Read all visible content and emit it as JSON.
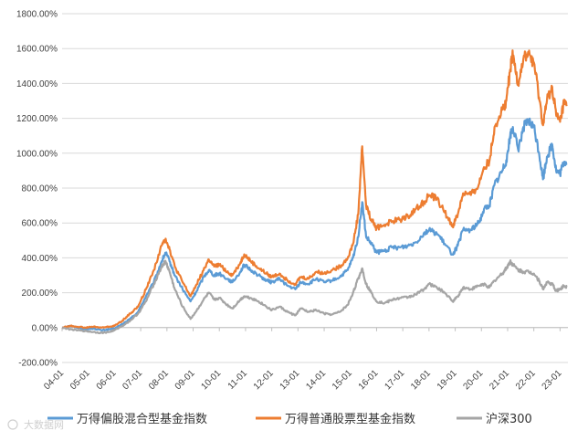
{
  "watermark": "大数据网",
  "chart_data": {
    "type": "line",
    "xlabel": "",
    "ylabel": "",
    "ylim": [
      -200,
      1800
    ],
    "yticks": [
      -200,
      0,
      200,
      400,
      600,
      800,
      1000,
      1200,
      1400,
      1600,
      1800
    ],
    "ytick_labels": [
      "-200.00%",
      "0.00%",
      "200.00%",
      "400.00%",
      "600.00%",
      "800.00%",
      "1000.00%",
      "1200.00%",
      "1400.00%",
      "1600.00%",
      "1800.00%"
    ],
    "x_tick_labels": [
      "04-01",
      "05-01",
      "06-01",
      "07-01",
      "08-01",
      "09-01",
      "10-01",
      "11-01",
      "12-01",
      "13-01",
      "14-01",
      "15-01",
      "16-01",
      "17-01",
      "18-01",
      "19-01",
      "20-01",
      "21-01",
      "22-01",
      "23-01"
    ],
    "x_range": [
      2004.0,
      2023.3
    ],
    "grid": true,
    "legend": "bottom",
    "series": [
      {
        "name": "万得偏股混合型基金指数",
        "color": "#5B9BD5",
        "points": [
          [
            2004.0,
            0
          ],
          [
            2004.3,
            10
          ],
          [
            2004.6,
            0
          ],
          [
            2004.9,
            -10
          ],
          [
            2005.2,
            -5
          ],
          [
            2005.5,
            -15
          ],
          [
            2005.8,
            -10
          ],
          [
            2006.0,
            -5
          ],
          [
            2006.3,
            20
          ],
          [
            2006.6,
            50
          ],
          [
            2006.9,
            90
          ],
          [
            2007.2,
            180
          ],
          [
            2007.5,
            260
          ],
          [
            2007.8,
            380
          ],
          [
            2007.95,
            430
          ],
          [
            2008.1,
            380
          ],
          [
            2008.3,
            300
          ],
          [
            2008.6,
            220
          ],
          [
            2008.9,
            150
          ],
          [
            2009.1,
            200
          ],
          [
            2009.4,
            290
          ],
          [
            2009.6,
            330
          ],
          [
            2009.8,
            300
          ],
          [
            2010.0,
            310
          ],
          [
            2010.3,
            280
          ],
          [
            2010.5,
            260
          ],
          [
            2010.8,
            320
          ],
          [
            2010.95,
            360
          ],
          [
            2011.2,
            330
          ],
          [
            2011.5,
            300
          ],
          [
            2011.8,
            270
          ],
          [
            2012.0,
            260
          ],
          [
            2012.3,
            280
          ],
          [
            2012.6,
            240
          ],
          [
            2012.9,
            220
          ],
          [
            2013.1,
            260
          ],
          [
            2013.4,
            250
          ],
          [
            2013.7,
            280
          ],
          [
            2014.0,
            260
          ],
          [
            2014.3,
            270
          ],
          [
            2014.6,
            290
          ],
          [
            2014.9,
            330
          ],
          [
            2015.1,
            400
          ],
          [
            2015.3,
            520
          ],
          [
            2015.45,
            720
          ],
          [
            2015.6,
            520
          ],
          [
            2015.8,
            480
          ],
          [
            2016.0,
            430
          ],
          [
            2016.3,
            440
          ],
          [
            2016.6,
            460
          ],
          [
            2016.9,
            460
          ],
          [
            2017.2,
            470
          ],
          [
            2017.5,
            490
          ],
          [
            2017.8,
            540
          ],
          [
            2018.0,
            560
          ],
          [
            2018.3,
            540
          ],
          [
            2018.6,
            480
          ],
          [
            2018.9,
            420
          ],
          [
            2019.1,
            470
          ],
          [
            2019.3,
            560
          ],
          [
            2019.6,
            560
          ],
          [
            2019.9,
            600
          ],
          [
            2020.1,
            680
          ],
          [
            2020.3,
            700
          ],
          [
            2020.5,
            820
          ],
          [
            2020.8,
            900
          ],
          [
            2020.95,
            960
          ],
          [
            2021.1,
            1100
          ],
          [
            2021.2,
            1150
          ],
          [
            2021.4,
            1020
          ],
          [
            2021.6,
            1150
          ],
          [
            2021.8,
            1180
          ],
          [
            2022.0,
            1150
          ],
          [
            2022.2,
            1000
          ],
          [
            2022.35,
            850
          ],
          [
            2022.5,
            980
          ],
          [
            2022.7,
            1050
          ],
          [
            2022.85,
            900
          ],
          [
            2023.0,
            880
          ],
          [
            2023.15,
            950
          ],
          [
            2023.25,
            940
          ]
        ]
      },
      {
        "name": "万得普通股票型基金指数",
        "color": "#ED7D31",
        "points": [
          [
            2004.0,
            0
          ],
          [
            2004.3,
            10
          ],
          [
            2004.6,
            5
          ],
          [
            2004.9,
            0
          ],
          [
            2005.2,
            5
          ],
          [
            2005.5,
            0
          ],
          [
            2005.8,
            5
          ],
          [
            2006.0,
            10
          ],
          [
            2006.3,
            40
          ],
          [
            2006.6,
            80
          ],
          [
            2006.9,
            120
          ],
          [
            2007.2,
            220
          ],
          [
            2007.5,
            330
          ],
          [
            2007.8,
            470
          ],
          [
            2007.95,
            510
          ],
          [
            2008.1,
            450
          ],
          [
            2008.3,
            350
          ],
          [
            2008.6,
            260
          ],
          [
            2008.9,
            180
          ],
          [
            2009.1,
            240
          ],
          [
            2009.4,
            330
          ],
          [
            2009.6,
            390
          ],
          [
            2009.8,
            350
          ],
          [
            2010.0,
            360
          ],
          [
            2010.3,
            320
          ],
          [
            2010.5,
            300
          ],
          [
            2010.8,
            370
          ],
          [
            2010.95,
            420
          ],
          [
            2011.2,
            380
          ],
          [
            2011.5,
            340
          ],
          [
            2011.8,
            310
          ],
          [
            2012.0,
            290
          ],
          [
            2012.3,
            310
          ],
          [
            2012.6,
            270
          ],
          [
            2012.9,
            250
          ],
          [
            2013.1,
            290
          ],
          [
            2013.4,
            280
          ],
          [
            2013.7,
            320
          ],
          [
            2014.0,
            310
          ],
          [
            2014.3,
            330
          ],
          [
            2014.6,
            350
          ],
          [
            2014.9,
            400
          ],
          [
            2015.1,
            480
          ],
          [
            2015.3,
            650
          ],
          [
            2015.45,
            1040
          ],
          [
            2015.6,
            700
          ],
          [
            2015.8,
            620
          ],
          [
            2016.0,
            570
          ],
          [
            2016.3,
            590
          ],
          [
            2016.6,
            610
          ],
          [
            2016.9,
            620
          ],
          [
            2017.2,
            640
          ],
          [
            2017.5,
            680
          ],
          [
            2017.8,
            720
          ],
          [
            2018.0,
            760
          ],
          [
            2018.3,
            740
          ],
          [
            2018.6,
            660
          ],
          [
            2018.9,
            580
          ],
          [
            2019.1,
            650
          ],
          [
            2019.3,
            770
          ],
          [
            2019.6,
            760
          ],
          [
            2019.9,
            820
          ],
          [
            2020.1,
            920
          ],
          [
            2020.3,
            950
          ],
          [
            2020.5,
            1150
          ],
          [
            2020.8,
            1250
          ],
          [
            2020.95,
            1300
          ],
          [
            2021.1,
            1480
          ],
          [
            2021.2,
            1560
          ],
          [
            2021.4,
            1400
          ],
          [
            2021.6,
            1540
          ],
          [
            2021.8,
            1570
          ],
          [
            2022.0,
            1520
          ],
          [
            2022.2,
            1320
          ],
          [
            2022.35,
            1160
          ],
          [
            2022.5,
            1300
          ],
          [
            2022.7,
            1380
          ],
          [
            2022.85,
            1220
          ],
          [
            2023.0,
            1180
          ],
          [
            2023.15,
            1290
          ],
          [
            2023.25,
            1270
          ]
        ]
      },
      {
        "name": "沪深300",
        "color": "#A5A5A5",
        "points": [
          [
            2004.0,
            0
          ],
          [
            2004.3,
            -10
          ],
          [
            2004.6,
            -15
          ],
          [
            2004.9,
            -20
          ],
          [
            2005.2,
            -25
          ],
          [
            2005.5,
            -30
          ],
          [
            2005.8,
            -25
          ],
          [
            2006.0,
            -15
          ],
          [
            2006.3,
            10
          ],
          [
            2006.6,
            40
          ],
          [
            2006.9,
            80
          ],
          [
            2007.2,
            150
          ],
          [
            2007.5,
            250
          ],
          [
            2007.8,
            350
          ],
          [
            2007.95,
            380
          ],
          [
            2008.1,
            320
          ],
          [
            2008.3,
            220
          ],
          [
            2008.6,
            120
          ],
          [
            2008.9,
            50
          ],
          [
            2009.1,
            90
          ],
          [
            2009.4,
            160
          ],
          [
            2009.6,
            200
          ],
          [
            2009.8,
            160
          ],
          [
            2010.0,
            170
          ],
          [
            2010.3,
            130
          ],
          [
            2010.5,
            110
          ],
          [
            2010.8,
            160
          ],
          [
            2010.95,
            180
          ],
          [
            2011.2,
            170
          ],
          [
            2011.5,
            150
          ],
          [
            2011.8,
            120
          ],
          [
            2012.0,
            100
          ],
          [
            2012.3,
            120
          ],
          [
            2012.6,
            90
          ],
          [
            2012.9,
            70
          ],
          [
            2013.1,
            110
          ],
          [
            2013.4,
            90
          ],
          [
            2013.7,
            100
          ],
          [
            2014.0,
            80
          ],
          [
            2014.3,
            75
          ],
          [
            2014.6,
            90
          ],
          [
            2014.9,
            130
          ],
          [
            2015.1,
            200
          ],
          [
            2015.3,
            280
          ],
          [
            2015.45,
            340
          ],
          [
            2015.6,
            250
          ],
          [
            2015.8,
            200
          ],
          [
            2016.0,
            150
          ],
          [
            2016.3,
            140
          ],
          [
            2016.6,
            160
          ],
          [
            2016.9,
            170
          ],
          [
            2017.2,
            175
          ],
          [
            2017.5,
            190
          ],
          [
            2017.8,
            220
          ],
          [
            2018.0,
            250
          ],
          [
            2018.3,
            230
          ],
          [
            2018.6,
            200
          ],
          [
            2018.9,
            150
          ],
          [
            2019.1,
            180
          ],
          [
            2019.3,
            230
          ],
          [
            2019.6,
            220
          ],
          [
            2019.9,
            240
          ],
          [
            2020.1,
            250
          ],
          [
            2020.3,
            230
          ],
          [
            2020.5,
            270
          ],
          [
            2020.8,
            310
          ],
          [
            2020.95,
            340
          ],
          [
            2021.1,
            380
          ],
          [
            2021.2,
            360
          ],
          [
            2021.4,
            330
          ],
          [
            2021.6,
            320
          ],
          [
            2021.8,
            320
          ],
          [
            2022.0,
            310
          ],
          [
            2022.2,
            270
          ],
          [
            2022.35,
            220
          ],
          [
            2022.5,
            260
          ],
          [
            2022.7,
            250
          ],
          [
            2022.85,
            210
          ],
          [
            2023.0,
            220
          ],
          [
            2023.15,
            240
          ],
          [
            2023.25,
            235
          ]
        ]
      }
    ]
  }
}
